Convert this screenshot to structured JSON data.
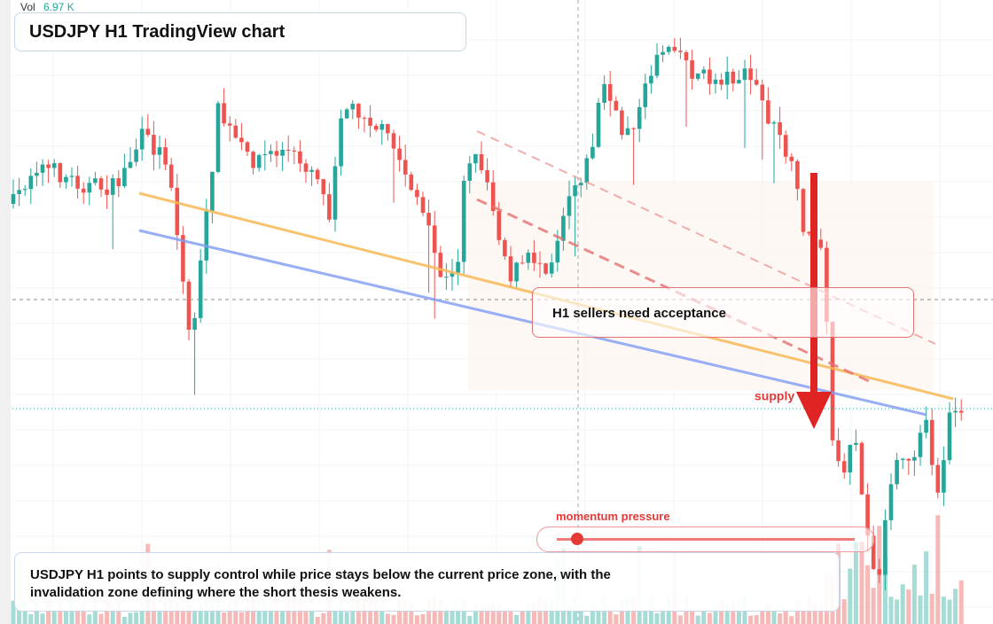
{
  "header": {
    "vol_label": "Vol",
    "vol_value": "6.97 K",
    "title": "USDJPY H1 TradingView chart"
  },
  "annotations": {
    "callout": "H1 sellers need acceptance",
    "zone_label": "supply",
    "meter_label": "momentum pressure",
    "summary": "USDJPY H1 points to supply control while price stays below the current price zone, with the invalidation zone defining where the short thesis weakens."
  }
}
